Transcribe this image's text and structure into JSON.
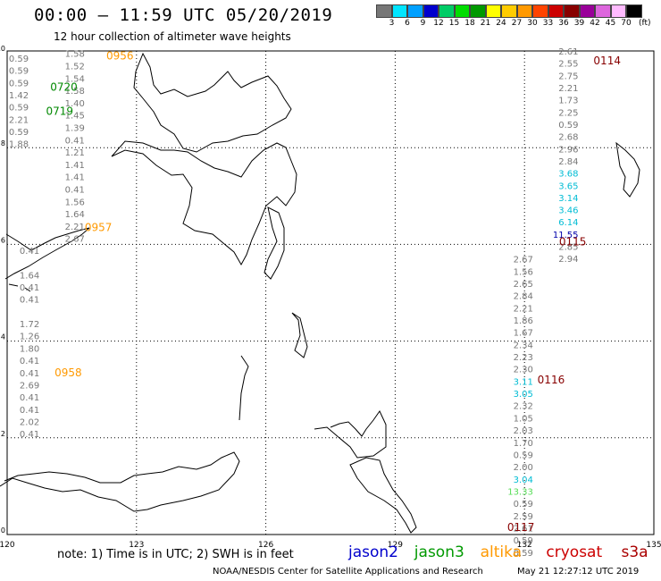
{
  "header": {
    "title": "00:00 – 11:59 UTC 05/20/2019",
    "subtitle": "12 hour collection of altimeter wave heights"
  },
  "legend": {
    "colors": [
      "#777777",
      "#00e5ff",
      "#00a0ff",
      "#0000cd",
      "#00cc66",
      "#00dd00",
      "#009900",
      "#ffff00",
      "#ffcc00",
      "#ff9900",
      "#ff4400",
      "#cc0000",
      "#880000",
      "#990099",
      "#dd66dd",
      "#ffbbff",
      "#000000"
    ],
    "labels": [
      "3",
      "6",
      "9",
      "12",
      "15",
      "18",
      "21",
      "24",
      "27",
      "30",
      "33",
      "36",
      "39",
      "42",
      "45",
      "70"
    ],
    "unit": "(ft)"
  },
  "axes": {
    "lon_ticks": [
      "120",
      "123",
      "126",
      "129",
      "132",
      "135"
    ],
    "lat_ticks": [
      "0",
      "2",
      "4",
      "6",
      "8",
      "10"
    ]
  },
  "tracks": [
    {
      "time": "0956",
      "color": "#ff9900",
      "lon": 122.3,
      "lat": 9.9
    },
    {
      "time": "0720",
      "color": "#008800",
      "lon": 121.0,
      "lat": 9.25
    },
    {
      "time": "0719",
      "color": "#008800",
      "lon": 120.9,
      "lat": 8.75
    },
    {
      "time": "0957",
      "color": "#ff9900",
      "lon": 121.8,
      "lat": 6.35
    },
    {
      "time": "0958",
      "color": "#ff9900",
      "lon": 121.1,
      "lat": 3.35
    },
    {
      "time": "0114",
      "color": "#880000",
      "lon": 133.6,
      "lat": 9.8
    },
    {
      "time": "0115",
      "color": "#880000",
      "lon": 132.8,
      "lat": 6.05
    },
    {
      "time": "0116",
      "color": "#880000",
      "lon": 132.3,
      "lat": 3.2
    },
    {
      "time": "0117",
      "color": "#880000",
      "lon": 131.6,
      "lat": 0.15
    }
  ],
  "wave_columns": [
    {
      "name": "west-col-1",
      "color": "#777777",
      "lon": 120.5,
      "lat_start": 9.85,
      "step": 0.252,
      "values": [
        "0.59",
        "0.59",
        "0.59",
        "1.42",
        "0.59",
        "2.21",
        "0.59",
        "1.88"
      ]
    },
    {
      "name": "west-col-2",
      "color": "#777777",
      "lon": 121.8,
      "lat_start": 9.95,
      "step": 0.255,
      "values": [
        "1.58",
        "1.52",
        "1.54",
        "1.58",
        "1.40",
        "1.45",
        "1.39",
        "0.41",
        "1.21",
        "1.41",
        "1.41",
        "0.41",
        "1.56",
        "1.64",
        "2.21",
        "2.67"
      ]
    },
    {
      "name": "west-col-3",
      "color": "#777777",
      "lon": 120.75,
      "lat_start": 5.88,
      "step": 0.253,
      "values": [
        "0.41",
        "",
        "1.64",
        "0.41",
        "0.41",
        "",
        "1.72",
        "1.26",
        "1.80",
        "0.41",
        "0.41",
        "2.69",
        "0.41",
        "0.41",
        "2.02",
        "0.41"
      ]
    },
    {
      "name": "east-col-1",
      "color": "#777777",
      "lon": 133.25,
      "lat_start": 10.0,
      "step": 0.2525,
      "values": [
        "2.61",
        "2.55",
        "2.75",
        "2.21",
        "1.73",
        "2.25",
        "0.59",
        "2.68",
        "2.96",
        "2.84",
        "3.68",
        "3.65",
        "3.14",
        "3.46",
        "6.14",
        "11.55",
        "2.85",
        "2.94"
      ]
    },
    {
      "name": "east-col-2",
      "color": "#777777",
      "lon": 132.2,
      "lat_start": 5.7,
      "step": 0.2528,
      "values": [
        "2.67",
        "1.56",
        "2.65",
        "2.84",
        "2.21",
        "1.86",
        "1.67",
        "2.34",
        "2.23",
        "2.30",
        "3.11",
        "3.05",
        "2.32",
        "1.05",
        "2.03",
        "1.70",
        "0.59",
        "2.00",
        "3.04",
        "13.33",
        "0.59",
        "2.59",
        "2.61",
        "0.59",
        "0.59"
      ]
    }
  ],
  "footer": {
    "note": "note: 1) Time is in UTC; 2) SWH is in feet",
    "satellites": [
      {
        "name": "jason2",
        "color": "#0000cc"
      },
      {
        "name": "jason3",
        "color": "#009900"
      },
      {
        "name": "altika",
        "color": "#ff9900"
      },
      {
        "name": "cryosat",
        "color": "#cc0000"
      },
      {
        "name": "s3a",
        "color": "#aa0000"
      }
    ],
    "credit": "NOAA/NESDIS Center for Satellite Applications and Research",
    "timestamp": "May 21 12:27:12 UTC 2019"
  }
}
